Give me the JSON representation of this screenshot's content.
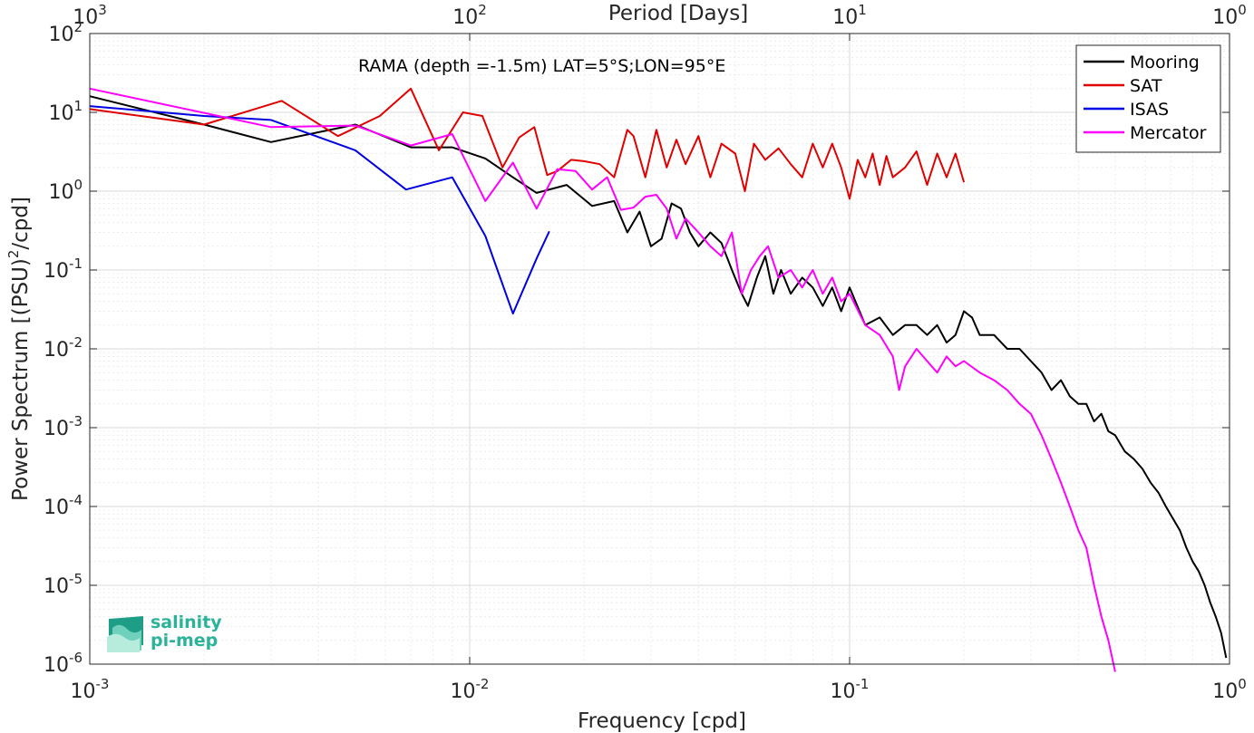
{
  "chart_data": {
    "type": "line",
    "annotation": "RAMA (depth =-1.5m) LAT=5°S;LON=95°E",
    "xlabel": "Frequency [cpd]",
    "ylabel_base": "Power Spectrum [(PSU)",
    "ylabel_sup": "2",
    "ylabel_tail": "/cpd]",
    "top_xlabel": "Period [Days]",
    "x_scale": "log",
    "y_scale": "log",
    "xlim": [
      0.001,
      1
    ],
    "ylim": [
      1e-06,
      100
    ],
    "x_ticks": [
      {
        "base": "10",
        "exp": "-3"
      },
      {
        "base": "10",
        "exp": "-2"
      },
      {
        "base": "10",
        "exp": "-1"
      },
      {
        "base": "10",
        "exp": "0"
      }
    ],
    "y_ticks": [
      {
        "base": "10",
        "exp": "-6"
      },
      {
        "base": "10",
        "exp": "-5"
      },
      {
        "base": "10",
        "exp": "-4"
      },
      {
        "base": "10",
        "exp": "-3"
      },
      {
        "base": "10",
        "exp": "-2"
      },
      {
        "base": "10",
        "exp": "-1"
      },
      {
        "base": "10",
        "exp": "0"
      },
      {
        "base": "10",
        "exp": "1"
      },
      {
        "base": "10",
        "exp": "2"
      }
    ],
    "top_ticks": [
      {
        "base": "10",
        "exp": "3"
      },
      {
        "base": "10",
        "exp": "2"
      },
      {
        "base": "10",
        "exp": "1"
      },
      {
        "base": "10",
        "exp": "0"
      }
    ],
    "grid": true,
    "legend_position": "top-right",
    "series": [
      {
        "name": "Mooring",
        "color": "#000000",
        "x": [
          0.001,
          0.002,
          0.003,
          0.005,
          0.007,
          0.009,
          0.011,
          0.013,
          0.015,
          0.018,
          0.021,
          0.024,
          0.026,
          0.028,
          0.03,
          0.032,
          0.034,
          0.036,
          0.038,
          0.04,
          0.043,
          0.046,
          0.049,
          0.052,
          0.054,
          0.057,
          0.06,
          0.063,
          0.066,
          0.07,
          0.075,
          0.08,
          0.085,
          0.09,
          0.095,
          0.1,
          0.11,
          0.12,
          0.13,
          0.14,
          0.15,
          0.16,
          0.17,
          0.18,
          0.19,
          0.2,
          0.21,
          0.22,
          0.24,
          0.26,
          0.28,
          0.3,
          0.32,
          0.34,
          0.36,
          0.38,
          0.4,
          0.42,
          0.44,
          0.46,
          0.48,
          0.5,
          0.53,
          0.56,
          0.59,
          0.62,
          0.65,
          0.68,
          0.71,
          0.74,
          0.77,
          0.8,
          0.83,
          0.86,
          0.89,
          0.92,
          0.95,
          0.98
        ],
        "y": [
          16,
          7,
          4.2,
          7,
          3.6,
          3.6,
          2.6,
          1.5,
          0.95,
          1.2,
          0.65,
          0.75,
          0.3,
          0.55,
          0.2,
          0.25,
          0.7,
          0.6,
          0.3,
          0.2,
          0.3,
          0.22,
          0.1,
          0.05,
          0.035,
          0.08,
          0.15,
          0.05,
          0.1,
          0.05,
          0.08,
          0.06,
          0.035,
          0.06,
          0.03,
          0.06,
          0.02,
          0.025,
          0.015,
          0.02,
          0.02,
          0.015,
          0.02,
          0.012,
          0.015,
          0.03,
          0.025,
          0.015,
          0.015,
          0.01,
          0.01,
          0.007,
          0.005,
          0.003,
          0.004,
          0.0025,
          0.002,
          0.002,
          0.0012,
          0.0015,
          0.0009,
          0.0008,
          0.0005,
          0.0004,
          0.0003,
          0.0002,
          0.00015,
          0.0001,
          7e-05,
          5e-05,
          3e-05,
          2e-05,
          1.5e-05,
          1e-05,
          6e-06,
          4e-06,
          2.5e-06,
          1.2e-06
        ]
      },
      {
        "name": "SAT",
        "color": "#e00000",
        "x": [
          0.001,
          0.002,
          0.0032,
          0.0045,
          0.0058,
          0.007,
          0.0083,
          0.0096,
          0.0108,
          0.0122,
          0.0135,
          0.0148,
          0.016,
          0.017,
          0.0185,
          0.02,
          0.022,
          0.024,
          0.026,
          0.027,
          0.029,
          0.031,
          0.033,
          0.035,
          0.037,
          0.04,
          0.043,
          0.046,
          0.05,
          0.053,
          0.056,
          0.06,
          0.065,
          0.07,
          0.075,
          0.08,
          0.085,
          0.09,
          0.095,
          0.1,
          0.105,
          0.11,
          0.115,
          0.12,
          0.125,
          0.13,
          0.14,
          0.15,
          0.16,
          0.17,
          0.18,
          0.19,
          0.2
        ],
        "y": [
          11,
          7,
          14,
          5,
          9,
          20,
          3.3,
          10,
          9,
          2,
          4.8,
          6.5,
          1.6,
          1.8,
          2.5,
          2.4,
          2.2,
          1.5,
          6,
          5,
          1.5,
          6,
          2,
          4.5,
          2.2,
          5,
          1.5,
          4,
          3,
          1,
          4,
          2.5,
          3.5,
          2.2,
          1.5,
          4,
          2,
          4,
          2,
          0.8,
          2.5,
          1.5,
          3,
          1.2,
          2.8,
          1.5,
          2,
          3.2,
          1.2,
          3,
          1.5,
          3,
          1.3
        ]
      },
      {
        "name": "ISAS",
        "color": "#0000e0",
        "x": [
          0.001,
          0.002,
          0.003,
          0.005,
          0.0068,
          0.009,
          0.011,
          0.013,
          0.015,
          0.0162
        ],
        "y": [
          12,
          9,
          8,
          3.3,
          1.05,
          1.5,
          0.27,
          0.028,
          0.14,
          0.31
        ]
      },
      {
        "name": "Mercator",
        "color": "#ff00ff",
        "x": [
          0.001,
          0.003,
          0.005,
          0.007,
          0.009,
          0.011,
          0.013,
          0.015,
          0.017,
          0.019,
          0.021,
          0.023,
          0.025,
          0.027,
          0.029,
          0.031,
          0.033,
          0.035,
          0.037,
          0.04,
          0.043,
          0.046,
          0.049,
          0.052,
          0.055,
          0.058,
          0.061,
          0.065,
          0.07,
          0.075,
          0.08,
          0.085,
          0.09,
          0.095,
          0.1,
          0.11,
          0.12,
          0.13,
          0.135,
          0.14,
          0.15,
          0.16,
          0.17,
          0.18,
          0.19,
          0.2,
          0.22,
          0.24,
          0.26,
          0.28,
          0.3,
          0.32,
          0.34,
          0.36,
          0.38,
          0.4,
          0.42,
          0.44,
          0.46,
          0.48,
          0.5
        ],
        "y": [
          20,
          6.5,
          6.8,
          3.8,
          5.3,
          0.75,
          2.3,
          0.6,
          1.9,
          1.8,
          1.05,
          1.5,
          0.58,
          0.62,
          0.85,
          0.9,
          0.6,
          0.25,
          0.45,
          0.3,
          0.2,
          0.15,
          0.3,
          0.05,
          0.1,
          0.15,
          0.2,
          0.08,
          0.1,
          0.06,
          0.1,
          0.05,
          0.08,
          0.04,
          0.05,
          0.02,
          0.015,
          0.008,
          0.003,
          0.006,
          0.01,
          0.007,
          0.005,
          0.008,
          0.006,
          0.007,
          0.005,
          0.004,
          0.003,
          0.002,
          0.0015,
          0.0008,
          0.0004,
          0.0002,
          0.0001,
          5e-05,
          3e-05,
          1e-05,
          4e-06,
          2e-06,
          8e-07
        ]
      }
    ]
  },
  "logo": {
    "line1": "salinity",
    "line2": "pi-mep"
  }
}
